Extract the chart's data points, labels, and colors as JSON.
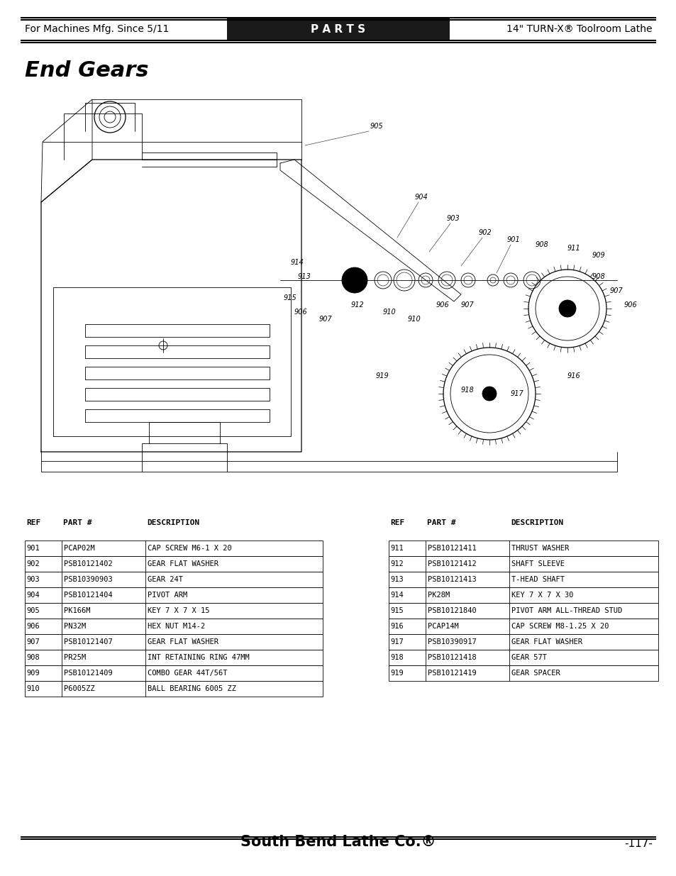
{
  "page_title": "End Gears",
  "header_left": "For Machines Mfg. Since 5/11",
  "header_center": "P A R T S",
  "header_right": "14\" TURN-X® Toolroom Lathe",
  "footer_center": "South Bend Lathe Co.®",
  "footer_right": "-117-",
  "left_table": [
    [
      "901",
      "PCAP02M",
      "CAP SCREW M6-1 X 20"
    ],
    [
      "902",
      "PSB10121402",
      "GEAR FLAT WASHER"
    ],
    [
      "903",
      "PSB10390903",
      "GEAR 24T"
    ],
    [
      "904",
      "PSB10121404",
      "PIVOT ARM"
    ],
    [
      "905",
      "PK166M",
      "KEY 7 X 7 X 15"
    ],
    [
      "906",
      "PN32M",
      "HEX NUT M14-2"
    ],
    [
      "907",
      "PSB10121407",
      "GEAR FLAT WASHER"
    ],
    [
      "908",
      "PR25M",
      "INT RETAINING RING 47MM"
    ],
    [
      "909",
      "PSB10121409",
      "COMBO GEAR 44T/56T"
    ],
    [
      "910",
      "P6005ZZ",
      "BALL BEARING 6005 ZZ"
    ]
  ],
  "right_table": [
    [
      "911",
      "PSB10121411",
      "THRUST WASHER"
    ],
    [
      "912",
      "PSB10121412",
      "SHAFT SLEEVE"
    ],
    [
      "913",
      "PSB10121413",
      "T-HEAD SHAFT"
    ],
    [
      "914",
      "PK28M",
      "KEY 7 X 7 X 30"
    ],
    [
      "915",
      "PSB10121840",
      "PIVOT ARM ALL-THREAD STUD"
    ],
    [
      "916",
      "PCAP14M",
      "CAP SCREW M8-1.25 X 20"
    ],
    [
      "917",
      "PSB10390917",
      "GEAR FLAT WASHER"
    ],
    [
      "918",
      "PSB10121418",
      "GEAR 57T"
    ],
    [
      "919",
      "PSB10121419",
      "GEAR SPACER"
    ]
  ],
  "bg_color": "#ffffff",
  "text_color": "#000000",
  "header_bg": "#1a1a1a",
  "header_text_color": "#ffffff"
}
